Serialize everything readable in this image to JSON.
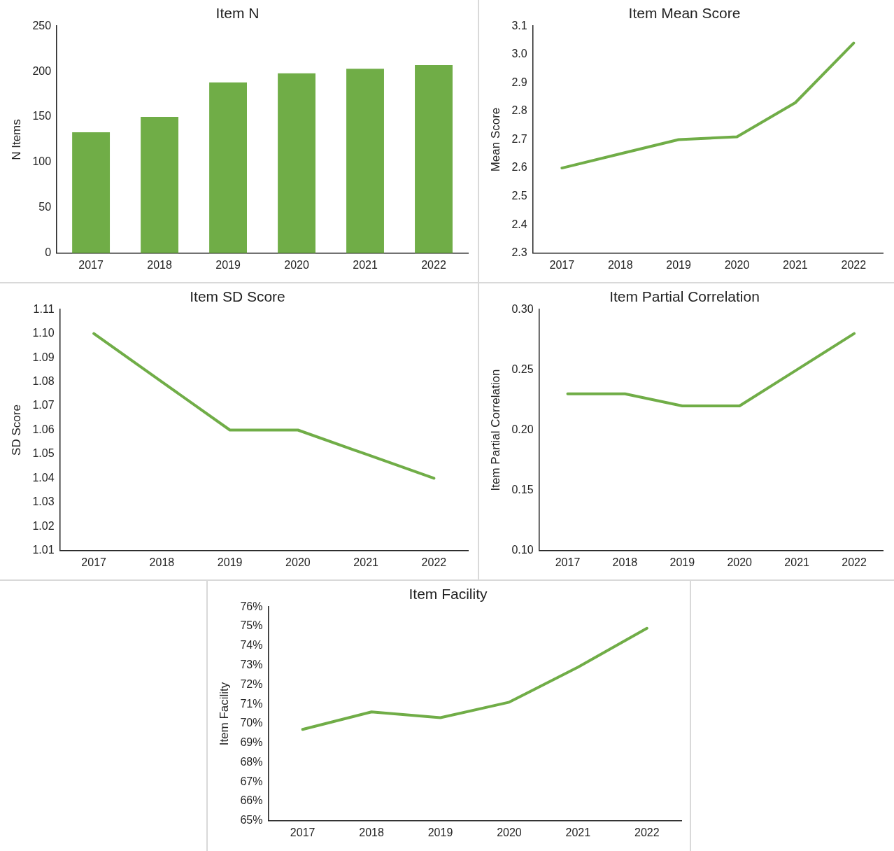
{
  "chart_data": [
    {
      "type": "bar",
      "title": "Item N",
      "ylabel": "N Items",
      "categories": [
        "2017",
        "2018",
        "2019",
        "2020",
        "2021",
        "2022"
      ],
      "values": [
        133,
        150,
        188,
        198,
        203,
        207
      ],
      "color": "#70ad47",
      "ylim": [
        0,
        250
      ],
      "yticks": [
        0,
        50,
        100,
        150,
        200,
        250
      ]
    },
    {
      "type": "line",
      "title": "Item Mean Score",
      "ylabel": "Mean Score",
      "categories": [
        "2017",
        "2018",
        "2019",
        "2020",
        "2021",
        "2022"
      ],
      "values": [
        2.6,
        2.65,
        2.7,
        2.71,
        2.83,
        3.04
      ],
      "color": "#70ad47",
      "ylim": [
        2.3,
        3.1
      ],
      "yticks": [
        {
          "value": 2.3,
          "label": "2.3"
        },
        {
          "value": 2.4,
          "label": "2.4"
        },
        {
          "value": 2.5,
          "label": "2.5"
        },
        {
          "value": 2.6,
          "label": "2.6"
        },
        {
          "value": 2.7,
          "label": "2.7"
        },
        {
          "value": 2.8,
          "label": "2.8"
        },
        {
          "value": 2.9,
          "label": "2.9"
        },
        {
          "value": 3.0,
          "label": "3.0"
        },
        {
          "value": 3.1,
          "label": "3.1"
        }
      ]
    },
    {
      "type": "line",
      "title": "Item SD Score",
      "ylabel": "SD Score",
      "categories": [
        "2017",
        "2018",
        "2019",
        "2020",
        "2021",
        "2022"
      ],
      "values": [
        1.1,
        1.08,
        1.06,
        1.06,
        1.05,
        1.04
      ],
      "color": "#70ad47",
      "ylim": [
        1.01,
        1.11
      ],
      "yticks": [
        1.01,
        1.02,
        1.03,
        1.04,
        1.05,
        1.06,
        1.07,
        1.08,
        1.09,
        {
          "value": 1.1,
          "label": "1.10"
        },
        1.11
      ]
    },
    {
      "type": "line",
      "title": "Item Partial Correlation",
      "ylabel": "Item Partial Correlation",
      "categories": [
        "2017",
        "2018",
        "2019",
        "2020",
        "2021",
        "2022"
      ],
      "values": [
        0.23,
        0.23,
        0.22,
        0.22,
        0.25,
        0.28
      ],
      "color": "#70ad47",
      "ylim": [
        0.1,
        0.3
      ],
      "yticks": [
        {
          "value": 0.1,
          "label": "0.10"
        },
        {
          "value": 0.15,
          "label": "0.15"
        },
        {
          "value": 0.2,
          "label": "0.20"
        },
        {
          "value": 0.25,
          "label": "0.25"
        },
        {
          "value": 0.3,
          "label": "0.30"
        }
      ]
    },
    {
      "type": "line",
      "title": "Item Facility",
      "ylabel": "Item Facility",
      "categories": [
        "2017",
        "2018",
        "2019",
        "2020",
        "2021",
        "2022"
      ],
      "values": [
        69.7,
        70.6,
        70.3,
        71.1,
        72.9,
        74.9
      ],
      "color": "#70ad47",
      "ylim": [
        65,
        76
      ],
      "yticks": [
        {
          "value": 65,
          "label": "65%"
        },
        {
          "value": 66,
          "label": "66%"
        },
        {
          "value": 67,
          "label": "67%"
        },
        {
          "value": 68,
          "label": "68%"
        },
        {
          "value": 69,
          "label": "69%"
        },
        {
          "value": 70,
          "label": "70%"
        },
        {
          "value": 71,
          "label": "71%"
        },
        {
          "value": 72,
          "label": "72%"
        },
        {
          "value": 73,
          "label": "73%"
        },
        {
          "value": 74,
          "label": "74%"
        },
        {
          "value": 75,
          "label": "75%"
        },
        {
          "value": 76,
          "label": "76%"
        }
      ]
    }
  ]
}
